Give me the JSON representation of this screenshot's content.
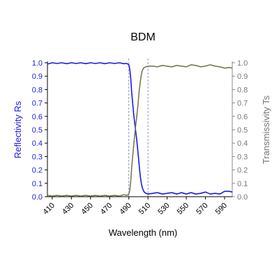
{
  "chart_data": {
    "type": "line",
    "title": "BDM",
    "xlabel": "Wavelength (nm)",
    "ylabel_left": "Reflectivity Rs",
    "ylabel_right": "Transmissivity Ts",
    "xlim": [
      405,
      598
    ],
    "ylim_left": [
      0,
      1.0
    ],
    "ylim_right": [
      0,
      1.0
    ],
    "x_ticks": [
      "410",
      "430",
      "450",
      "470",
      "490",
      "510",
      "530",
      "550",
      "570",
      "590"
    ],
    "y_ticks_left": [
      "0.0",
      "0.1",
      "0.2",
      "0.3",
      "0.4",
      "0.5",
      "0.6",
      "0.7",
      "0.8",
      "0.9",
      "1.0"
    ],
    "y_ticks_right": [
      "0.0",
      "0.1",
      "0.2",
      "0.3",
      "0.4",
      "0.5",
      "0.6",
      "0.7",
      "0.8",
      "0.9",
      "1.0"
    ],
    "vertical_lines": [
      490,
      510
    ],
    "grid": false,
    "colors": {
      "reflectivity": "#1a1ae6",
      "transmissivity": "#7a7a50",
      "left_axis": "#1a1ae6",
      "right_axis": "#777777",
      "vlines": "#6a7fb0"
    },
    "series": [
      {
        "axis": "left",
        "x": [
          405,
          410,
          415,
          420,
          425,
          430,
          435,
          440,
          445,
          450,
          455,
          460,
          465,
          470,
          475,
          480,
          485,
          488,
          490,
          491,
          492,
          493,
          494,
          495,
          496,
          497,
          498,
          499,
          500,
          501,
          502,
          503,
          504,
          505,
          506,
          508,
          510,
          515,
          520,
          525,
          530,
          535,
          540,
          545,
          550,
          555,
          560,
          565,
          570,
          575,
          580,
          585,
          590,
          595,
          598
        ],
        "y": [
          0.99,
          1.0,
          0.995,
          1.0,
          0.993,
          1.0,
          0.995,
          1.0,
          0.993,
          1.0,
          0.995,
          1.0,
          0.993,
          1.0,
          0.995,
          1.0,
          0.993,
          0.995,
          0.985,
          0.95,
          0.88,
          0.78,
          0.7,
          0.62,
          0.56,
          0.5,
          0.44,
          0.37,
          0.3,
          0.22,
          0.15,
          0.1,
          0.07,
          0.05,
          0.035,
          0.025,
          0.02,
          0.025,
          0.03,
          0.02,
          0.025,
          0.03,
          0.02,
          0.03,
          0.02,
          0.03,
          0.02,
          0.025,
          0.035,
          0.02,
          0.025,
          0.02,
          0.04,
          0.04,
          0.035
        ]
      },
      {
        "axis": "right",
        "x": [
          405,
          410,
          415,
          420,
          425,
          430,
          435,
          440,
          445,
          450,
          455,
          460,
          465,
          470,
          475,
          480,
          485,
          488,
          490,
          491,
          492,
          493,
          494,
          495,
          496,
          497,
          498,
          499,
          500,
          501,
          502,
          503,
          504,
          505,
          506,
          508,
          510,
          515,
          520,
          525,
          530,
          535,
          540,
          545,
          550,
          555,
          560,
          565,
          570,
          575,
          580,
          585,
          590,
          595,
          598
        ],
        "y": [
          0.01,
          0.005,
          0.01,
          0.005,
          0.01,
          0.005,
          0.01,
          0.005,
          0.01,
          0.005,
          0.01,
          0.005,
          0.01,
          0.005,
          0.01,
          0.005,
          0.015,
          0.01,
          0.02,
          0.05,
          0.12,
          0.22,
          0.3,
          0.38,
          0.45,
          0.52,
          0.58,
          0.65,
          0.72,
          0.8,
          0.86,
          0.91,
          0.94,
          0.955,
          0.965,
          0.97,
          0.975,
          0.975,
          0.97,
          0.98,
          0.975,
          0.97,
          0.98,
          0.975,
          0.97,
          0.985,
          0.98,
          0.97,
          0.975,
          0.985,
          0.975,
          0.97,
          0.96,
          0.965,
          0.96
        ]
      }
    ]
  }
}
